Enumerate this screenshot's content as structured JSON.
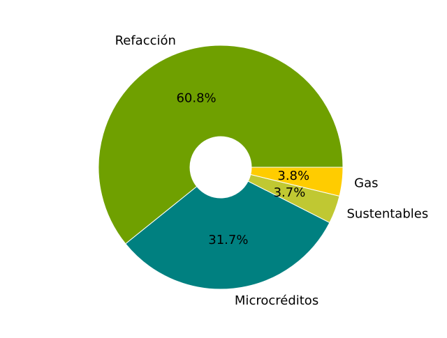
{
  "chart_data": {
    "type": "pie",
    "title": "",
    "donut": true,
    "start_angle_deg": 0,
    "direction": "counterclockwise",
    "slices": [
      {
        "label": "Refacción",
        "value": 60.8,
        "pct_label": "60.8%",
        "color": "#6fa000"
      },
      {
        "label": "Microcréditos",
        "value": 31.7,
        "pct_label": "31.7%",
        "color": "#008080"
      },
      {
        "label": "Sustentables",
        "value": 3.7,
        "pct_label": "3.7%",
        "color": "#c0c832"
      },
      {
        "label": "Gas",
        "value": 3.8,
        "pct_label": "3.8%",
        "color": "#ffcc00"
      }
    ]
  }
}
